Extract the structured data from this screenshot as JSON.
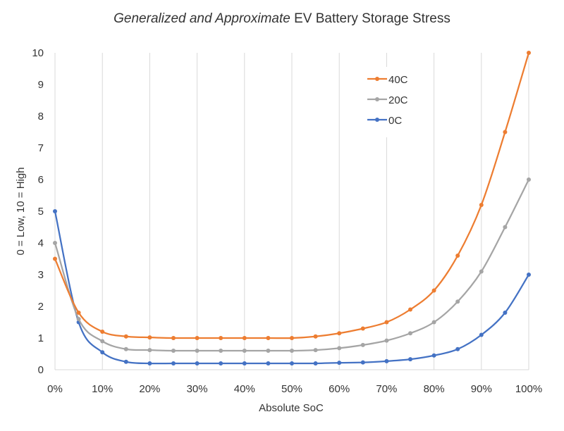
{
  "chart_data": {
    "type": "line",
    "title_parts": [
      {
        "text": "Generalized and Approximate",
        "italic": true
      },
      {
        "text": " EV Battery Storage Stress",
        "italic": false
      }
    ],
    "xlabel": "Absolute SoC",
    "ylabel": "0 = Low, 10 = High",
    "x": [
      0,
      5,
      10,
      15,
      20,
      25,
      30,
      35,
      40,
      45,
      50,
      55,
      60,
      65,
      70,
      75,
      80,
      85,
      90,
      95,
      100
    ],
    "xtick_values": [
      0,
      10,
      20,
      30,
      40,
      50,
      60,
      70,
      80,
      90,
      100
    ],
    "xtick_labels": [
      "0%",
      "10%",
      "20%",
      "30%",
      "40%",
      "50%",
      "60%",
      "70%",
      "80%",
      "90%",
      "100%"
    ],
    "ytick_values": [
      0,
      1,
      2,
      3,
      4,
      5,
      6,
      7,
      8,
      9,
      10
    ],
    "ytick_labels": [
      "0",
      "1",
      "2",
      "3",
      "4",
      "5",
      "6",
      "7",
      "8",
      "9",
      "10"
    ],
    "xlim": [
      0,
      100
    ],
    "ylim": [
      0,
      10
    ],
    "grid": "vertical",
    "legend_position": "top-right",
    "series": [
      {
        "name": "40C",
        "color": "#ED7D31",
        "values": [
          3.5,
          1.8,
          1.2,
          1.05,
          1.02,
          1.0,
          1.0,
          1.0,
          1.0,
          1.0,
          1.0,
          1.05,
          1.15,
          1.3,
          1.5,
          1.9,
          2.5,
          3.6,
          5.2,
          7.5,
          10.0
        ]
      },
      {
        "name": "20C",
        "color": "#A5A5A5",
        "values": [
          4.0,
          1.6,
          0.9,
          0.65,
          0.62,
          0.6,
          0.6,
          0.6,
          0.6,
          0.6,
          0.6,
          0.62,
          0.68,
          0.78,
          0.92,
          1.15,
          1.5,
          2.15,
          3.1,
          4.5,
          6.0
        ]
      },
      {
        "name": "0C",
        "color": "#4472C4",
        "values": [
          5.0,
          1.5,
          0.55,
          0.25,
          0.2,
          0.2,
          0.2,
          0.2,
          0.2,
          0.2,
          0.2,
          0.2,
          0.22,
          0.23,
          0.27,
          0.33,
          0.45,
          0.65,
          1.1,
          1.8,
          3.0
        ]
      }
    ]
  }
}
